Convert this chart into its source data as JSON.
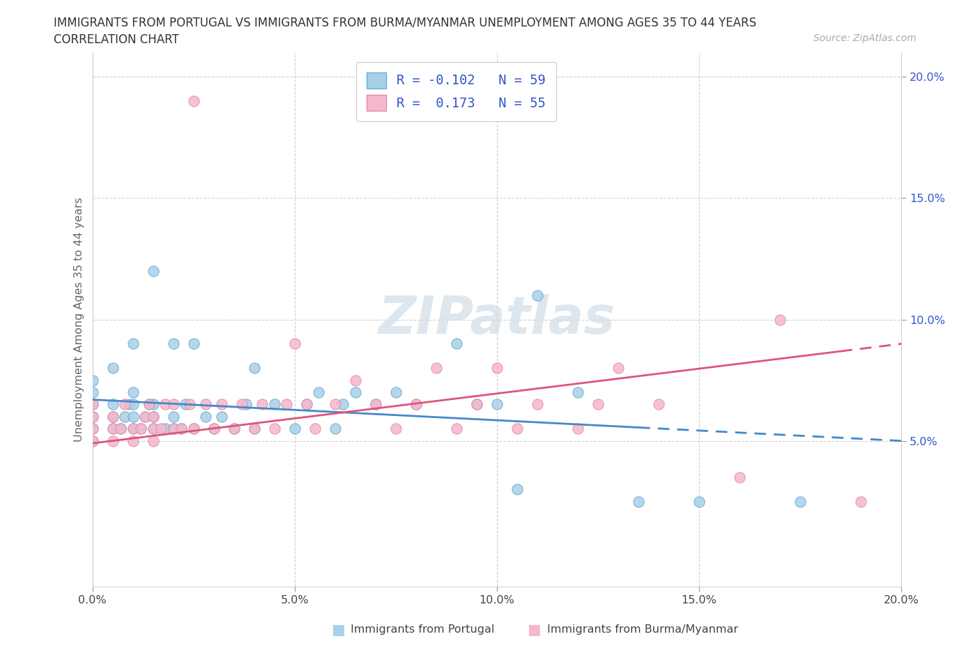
{
  "title_line1": "IMMIGRANTS FROM PORTUGAL VS IMMIGRANTS FROM BURMA/MYANMAR UNEMPLOYMENT AMONG AGES 35 TO 44 YEARS",
  "title_line2": "CORRELATION CHART",
  "source_text": "Source: ZipAtlas.com",
  "ylabel": "Unemployment Among Ages 35 to 44 years",
  "xlim": [
    0.0,
    0.2
  ],
  "ylim": [
    -0.01,
    0.21
  ],
  "xticks": [
    0.0,
    0.05,
    0.1,
    0.15,
    0.2
  ],
  "yticks": [
    0.05,
    0.1,
    0.15,
    0.2
  ],
  "xticklabels": [
    "0.0%",
    "5.0%",
    "10.0%",
    "15.0%",
    "20.0%"
  ],
  "yticklabels_right": [
    "5.0%",
    "10.0%",
    "15.0%",
    "20.0%"
  ],
  "portugal_color": "#a8d0e8",
  "portugal_edge_color": "#6aaad4",
  "burma_color": "#f4b8cc",
  "burma_edge_color": "#e888a8",
  "portugal_R": -0.102,
  "portugal_N": 59,
  "burma_R": 0.173,
  "burma_N": 55,
  "portugal_line_color": "#4488cc",
  "burma_line_color": "#dd5577",
  "legend_label_portugal": "Immigrants from Portugal",
  "legend_label_burma": "Immigrants from Burma/Myanmar",
  "watermark": "ZIPatlas",
  "legend_R_color": "#3355cc",
  "trend_port_x0": 0.0,
  "trend_port_x1": 0.2,
  "trend_port_y0": 0.067,
  "trend_port_y1": 0.05,
  "trend_burma_x0": 0.0,
  "trend_burma_x1": 0.2,
  "trend_burma_y0": 0.049,
  "trend_burma_y1": 0.09,
  "trend_port_dash_start": 0.135,
  "trend_burma_dash_start": 0.185,
  "portugal_scatter_x": [
    0.0,
    0.0,
    0.0,
    0.0,
    0.0,
    0.0,
    0.005,
    0.005,
    0.005,
    0.005,
    0.007,
    0.008,
    0.009,
    0.01,
    0.01,
    0.01,
    0.01,
    0.01,
    0.012,
    0.013,
    0.014,
    0.015,
    0.015,
    0.015,
    0.015,
    0.018,
    0.02,
    0.02,
    0.02,
    0.022,
    0.023,
    0.025,
    0.025,
    0.028,
    0.03,
    0.032,
    0.035,
    0.038,
    0.04,
    0.04,
    0.045,
    0.05,
    0.053,
    0.056,
    0.06,
    0.062,
    0.065,
    0.07,
    0.075,
    0.08,
    0.09,
    0.095,
    0.1,
    0.105,
    0.11,
    0.12,
    0.135,
    0.15,
    0.175
  ],
  "portugal_scatter_y": [
    0.05,
    0.055,
    0.06,
    0.065,
    0.07,
    0.075,
    0.055,
    0.06,
    0.065,
    0.08,
    0.055,
    0.06,
    0.065,
    0.055,
    0.06,
    0.065,
    0.07,
    0.09,
    0.055,
    0.06,
    0.065,
    0.055,
    0.06,
    0.065,
    0.12,
    0.055,
    0.055,
    0.06,
    0.09,
    0.055,
    0.065,
    0.055,
    0.09,
    0.06,
    0.055,
    0.06,
    0.055,
    0.065,
    0.055,
    0.08,
    0.065,
    0.055,
    0.065,
    0.07,
    0.055,
    0.065,
    0.07,
    0.065,
    0.07,
    0.065,
    0.09,
    0.065,
    0.065,
    0.03,
    0.11,
    0.07,
    0.025,
    0.025,
    0.025
  ],
  "burma_scatter_x": [
    0.0,
    0.0,
    0.0,
    0.0,
    0.005,
    0.005,
    0.005,
    0.007,
    0.008,
    0.01,
    0.01,
    0.012,
    0.013,
    0.014,
    0.015,
    0.015,
    0.015,
    0.017,
    0.018,
    0.02,
    0.02,
    0.022,
    0.024,
    0.025,
    0.025,
    0.028,
    0.03,
    0.032,
    0.035,
    0.037,
    0.04,
    0.042,
    0.045,
    0.048,
    0.05,
    0.053,
    0.055,
    0.06,
    0.065,
    0.07,
    0.075,
    0.08,
    0.085,
    0.09,
    0.095,
    0.1,
    0.105,
    0.11,
    0.12,
    0.125,
    0.13,
    0.14,
    0.16,
    0.17,
    0.19
  ],
  "burma_scatter_y": [
    0.05,
    0.055,
    0.06,
    0.065,
    0.05,
    0.055,
    0.06,
    0.055,
    0.065,
    0.05,
    0.055,
    0.055,
    0.06,
    0.065,
    0.05,
    0.055,
    0.06,
    0.055,
    0.065,
    0.055,
    0.065,
    0.055,
    0.065,
    0.055,
    0.19,
    0.065,
    0.055,
    0.065,
    0.055,
    0.065,
    0.055,
    0.065,
    0.055,
    0.065,
    0.09,
    0.065,
    0.055,
    0.065,
    0.075,
    0.065,
    0.055,
    0.065,
    0.08,
    0.055,
    0.065,
    0.08,
    0.055,
    0.065,
    0.055,
    0.065,
    0.08,
    0.065,
    0.035,
    0.1,
    0.025
  ]
}
